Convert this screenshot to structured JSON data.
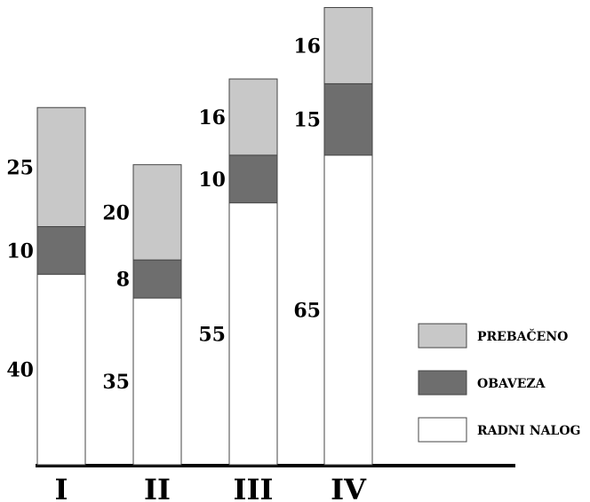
{
  "chart_data": {
    "type": "bar",
    "stacked": true,
    "categories": [
      "I",
      "II",
      "III",
      "IV"
    ],
    "series": [
      {
        "name": "RADNI NALOG",
        "values": [
          40,
          35,
          55,
          65
        ],
        "color": "#ffffff"
      },
      {
        "name": "OBAVEZA",
        "values": [
          10,
          8,
          10,
          15
        ],
        "color": "#6e6e6e"
      },
      {
        "name": "PREBAČENO",
        "values": [
          25,
          20,
          16,
          16
        ],
        "color": "#c8c8c8"
      }
    ],
    "legend_order": [
      "PREBAČENO",
      "OBAVEZA",
      "RADNI NALOG"
    ],
    "legend_position": "right",
    "title": "",
    "xlabel": "",
    "ylabel": "",
    "grid": false
  }
}
